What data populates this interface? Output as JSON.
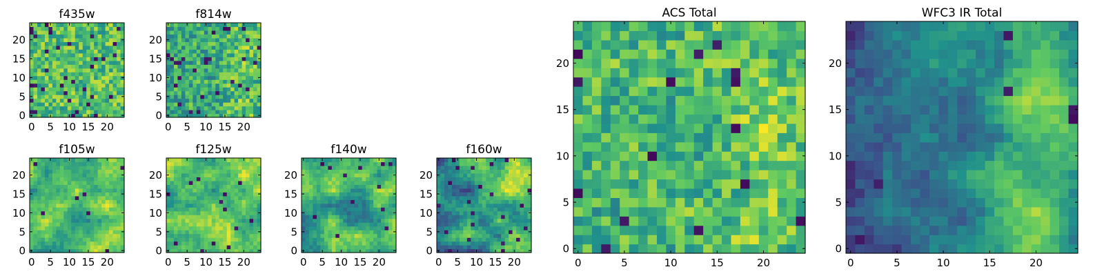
{
  "colormap": [
    "#440154",
    "#3b528b",
    "#21918c",
    "#5ec962",
    "#fde725"
  ],
  "chart_data": [
    {
      "type": "heatmap",
      "title": "f435w",
      "grid": false,
      "xlim": [
        -0.5,
        24.5
      ],
      "ylim": [
        -0.5,
        24.5
      ],
      "xticks": [
        0,
        5,
        10,
        15,
        20
      ],
      "yticks": [
        0,
        5,
        10,
        15,
        20
      ],
      "matrix_size": [
        25,
        25
      ],
      "texture": "uniform noise with scattered dark pixels"
    },
    {
      "type": "heatmap",
      "title": "f814w",
      "grid": false,
      "xlim": [
        -0.5,
        24.5
      ],
      "ylim": [
        -0.5,
        24.5
      ],
      "xticks": [
        0,
        5,
        10,
        15,
        20
      ],
      "yticks": [
        0,
        5,
        10,
        15,
        20
      ],
      "matrix_size": [
        25,
        25
      ],
      "texture": "uniform noise, brighter at right"
    },
    {
      "type": "heatmap",
      "title": "f105w",
      "grid": false,
      "xlim": [
        -0.5,
        24.5
      ],
      "ylim": [
        -0.5,
        24.5
      ],
      "xticks": [
        0,
        5,
        10,
        15,
        20
      ],
      "yticks": [
        0,
        5,
        10,
        15,
        20
      ],
      "matrix_size": [
        25,
        25
      ],
      "texture": "smooth, bright toward right"
    },
    {
      "type": "heatmap",
      "title": "f125w",
      "grid": false,
      "xlim": [
        -0.5,
        24.5
      ],
      "ylim": [
        -0.5,
        24.5
      ],
      "xticks": [
        0,
        5,
        10,
        15,
        20
      ],
      "yticks": [
        0,
        5,
        10,
        15,
        20
      ],
      "matrix_size": [
        25,
        25
      ],
      "texture": "smooth, bright with dark patches"
    },
    {
      "type": "heatmap",
      "title": "f140w",
      "grid": false,
      "xlim": [
        -0.5,
        24.5
      ],
      "ylim": [
        -0.5,
        24.5
      ],
      "xticks": [
        0,
        5,
        10,
        15,
        20
      ],
      "yticks": [
        0,
        5,
        10,
        15,
        20
      ],
      "matrix_size": [
        25,
        25
      ],
      "texture": "smooth, mixed"
    },
    {
      "type": "heatmap",
      "title": "f160w",
      "grid": false,
      "xlim": [
        -0.5,
        24.5
      ],
      "ylim": [
        -0.5,
        24.5
      ],
      "xticks": [
        0,
        5,
        10,
        15,
        20
      ],
      "yticks": [
        0,
        5,
        10,
        15,
        20
      ],
      "matrix_size": [
        25,
        25
      ],
      "texture": "smooth, dark left, bright lower right"
    },
    {
      "type": "heatmap",
      "title": "ACS Total",
      "grid": false,
      "xlim": [
        -0.5,
        24.5
      ],
      "ylim": [
        -0.5,
        24.5
      ],
      "xticks": [
        0,
        5,
        10,
        15,
        20
      ],
      "yticks": [
        0,
        5,
        10,
        15,
        20
      ],
      "matrix_size": [
        25,
        25
      ],
      "texture": "noise, brighter toward right"
    },
    {
      "type": "heatmap",
      "title": "WFC3 IR Total",
      "grid": false,
      "xlim": [
        -0.5,
        24.5
      ],
      "ylim": [
        -0.5,
        24.5
      ],
      "xticks": [
        0,
        5,
        10,
        15,
        20
      ],
      "yticks": [
        0,
        5,
        10,
        15,
        20
      ],
      "matrix_size": [
        25,
        25
      ],
      "texture": "smooth, dark left, bright band near x=20"
    }
  ]
}
